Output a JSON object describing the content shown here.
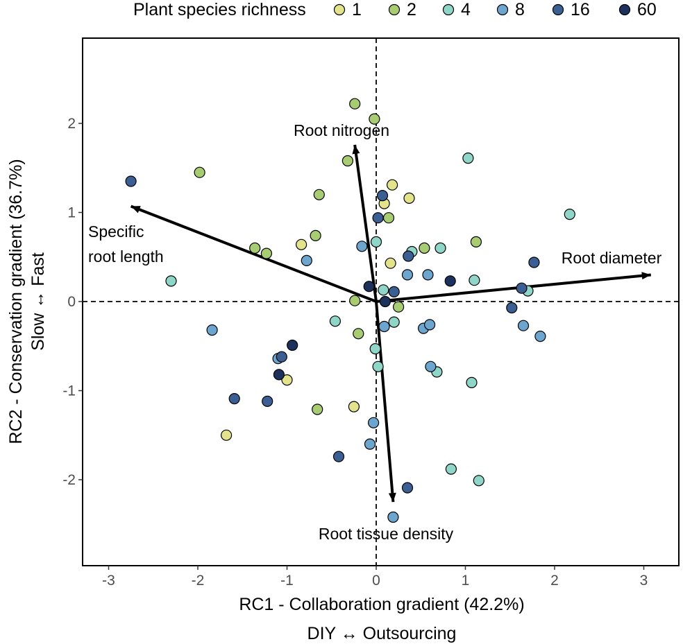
{
  "chart_data": {
    "type": "scatter",
    "title": "",
    "xlabel": "RC1 - Collaboration gradient (42.2%)",
    "xlabel_sub": "DIY ↔ Outsourcing",
    "ylabel": "RC2 - Conservation gradient (36.7%)",
    "ylabel_sub": "Slow ↔ Fast",
    "xlim": [
      -3.3,
      3.1
    ],
    "ylim": [
      -2.95,
      2.95
    ],
    "xticks": [
      -3,
      -2,
      -1,
      0,
      1,
      2,
      3
    ],
    "yticks": [
      -2,
      -1,
      0,
      1,
      2
    ],
    "reference_lines": {
      "x": 0,
      "y": 0,
      "style": "dashed"
    },
    "legend": {
      "title": "Plant species richness",
      "placement": "top",
      "entries": [
        {
          "label": "1",
          "color": "#e2e38a"
        },
        {
          "label": "2",
          "color": "#a8cc72"
        },
        {
          "label": "4",
          "color": "#8fd5c8"
        },
        {
          "label": "8",
          "color": "#6ca6cf"
        },
        {
          "label": "16",
          "color": "#3b5f93"
        },
        {
          "label": "60",
          "color": "#1d315d"
        }
      ]
    },
    "vectors": [
      {
        "label": "Root nitrogen",
        "x": -0.24,
        "y": 1.76
      },
      {
        "label": "Specific root length",
        "x": -2.75,
        "y": 1.07
      },
      {
        "label": "Root diameter",
        "x": 3.08,
        "y": 0.3
      },
      {
        "label": "Root tissue density",
        "x": 0.19,
        "y": -2.25
      }
    ],
    "series": [
      {
        "name": "1",
        "points": [
          [
            -0.84,
            0.64
          ],
          [
            0.09,
            1.1
          ],
          [
            0.18,
            1.31
          ],
          [
            0.37,
            1.16
          ],
          [
            0.16,
            0.43
          ],
          [
            -1.0,
            -0.88
          ],
          [
            -0.25,
            -1.18
          ],
          [
            -1.68,
            -1.5
          ]
        ]
      },
      {
        "name": "2",
        "points": [
          [
            -0.24,
            2.22
          ],
          [
            -0.02,
            2.05
          ],
          [
            -0.32,
            1.58
          ],
          [
            -1.98,
            1.45
          ],
          [
            -0.64,
            1.2
          ],
          [
            0.14,
            0.94
          ],
          [
            -1.36,
            0.6
          ],
          [
            -1.23,
            0.54
          ],
          [
            -0.68,
            0.74
          ],
          [
            0.54,
            0.6
          ],
          [
            1.12,
            0.67
          ],
          [
            -0.24,
            0.01
          ],
          [
            0.25,
            -0.06
          ],
          [
            -0.2,
            -0.36
          ],
          [
            -0.66,
            -1.21
          ]
        ]
      },
      {
        "name": "4",
        "points": [
          [
            1.03,
            1.61
          ],
          [
            2.17,
            0.98
          ],
          [
            0.0,
            0.67
          ],
          [
            0.4,
            0.56
          ],
          [
            0.72,
            0.6
          ],
          [
            -2.3,
            0.23
          ],
          [
            1.1,
            0.24
          ],
          [
            1.7,
            0.12
          ],
          [
            0.08,
            0.13
          ],
          [
            -0.46,
            -0.22
          ],
          [
            0.2,
            -0.23
          ],
          [
            -0.01,
            -0.53
          ],
          [
            0.02,
            -0.73
          ],
          [
            0.68,
            -0.79
          ],
          [
            1.07,
            -0.91
          ],
          [
            0.84,
            -1.88
          ],
          [
            1.15,
            -2.01
          ]
        ]
      },
      {
        "name": "8",
        "points": [
          [
            -0.16,
            0.62
          ],
          [
            -0.78,
            0.46
          ],
          [
            0.35,
            0.3
          ],
          [
            0.58,
            0.3
          ],
          [
            -1.84,
            -0.32
          ],
          [
            0.09,
            -0.28
          ],
          [
            0.53,
            -0.3
          ],
          [
            0.6,
            -0.26
          ],
          [
            1.65,
            -0.27
          ],
          [
            1.84,
            -0.39
          ],
          [
            -1.1,
            -0.64
          ],
          [
            0.61,
            -0.73
          ],
          [
            -0.03,
            -1.36
          ],
          [
            -0.07,
            -1.6
          ],
          [
            0.19,
            -2.42
          ]
        ]
      },
      {
        "name": "16",
        "points": [
          [
            -2.75,
            1.35
          ],
          [
            0.07,
            1.19
          ],
          [
            0.02,
            0.94
          ],
          [
            1.77,
            0.44
          ],
          [
            0.36,
            0.51
          ],
          [
            1.63,
            0.15
          ],
          [
            0.2,
            0.11
          ],
          [
            1.52,
            -0.07
          ],
          [
            -1.06,
            -0.62
          ],
          [
            -1.59,
            -1.09
          ],
          [
            -1.22,
            -1.12
          ],
          [
            -0.42,
            -1.74
          ],
          [
            0.35,
            -2.09
          ]
        ]
      },
      {
        "name": "60",
        "points": [
          [
            -0.08,
            0.17
          ],
          [
            0.83,
            0.23
          ],
          [
            0.1,
            0.0
          ],
          [
            -0.94,
            -0.49
          ],
          [
            -1.09,
            -0.82
          ]
        ]
      }
    ]
  }
}
